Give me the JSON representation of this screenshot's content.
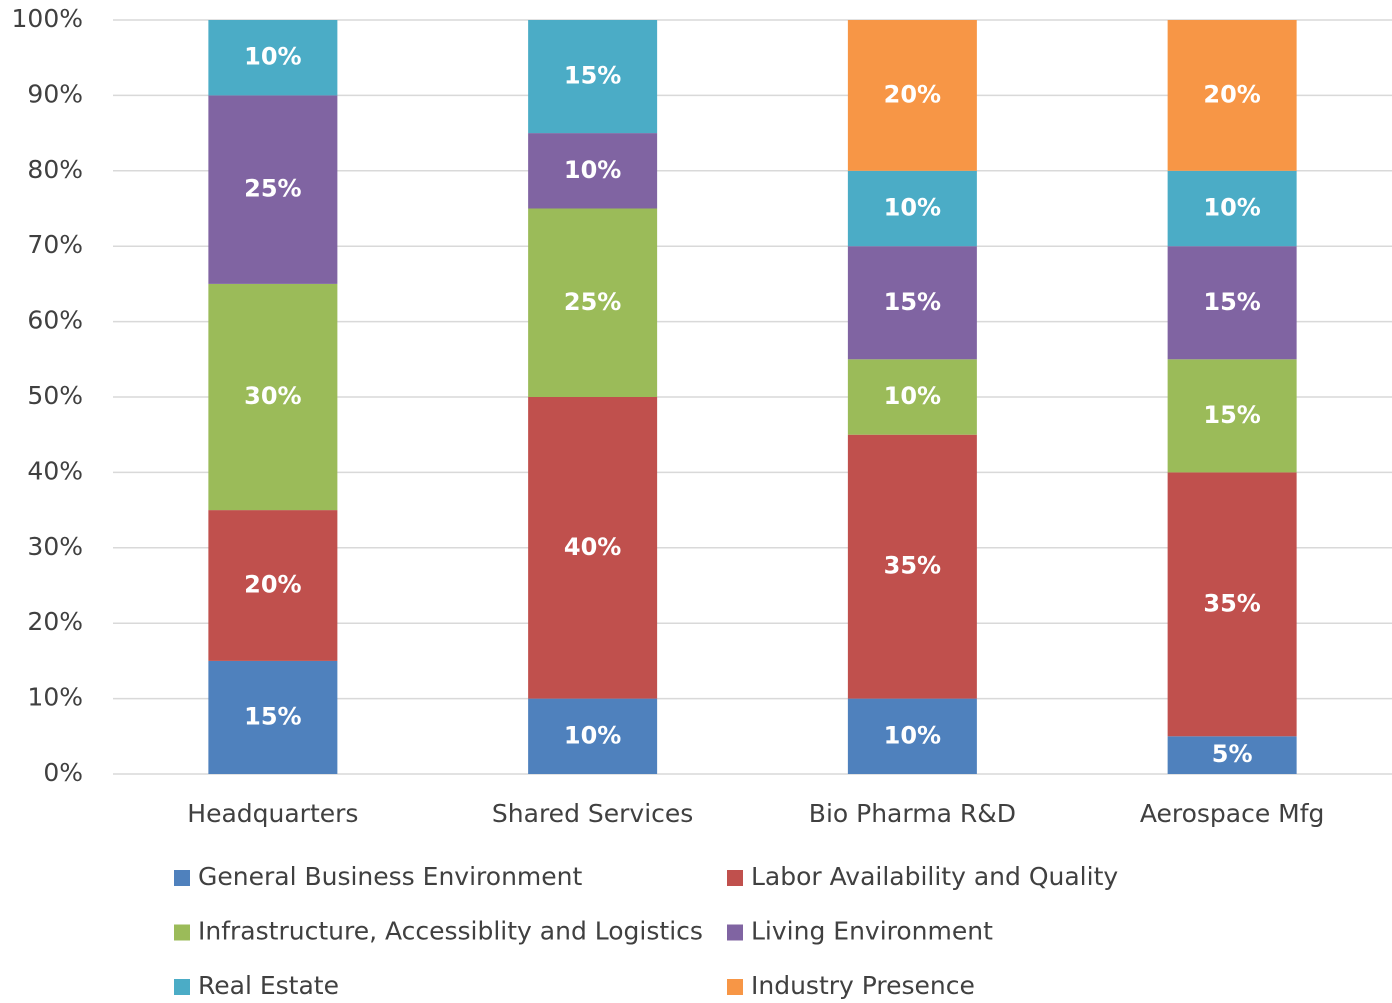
{
  "chart_data": {
    "type": "stacked-bar",
    "categories": [
      "Headquarters",
      "Shared Services",
      "Bio Pharma R&D",
      "Aerospace Mfg"
    ],
    "series": [
      {
        "name": "General Business Environment",
        "color": "#4f81bd",
        "values": [
          15,
          10,
          10,
          5
        ],
        "value_labels": [
          "15%",
          "10%",
          "10%",
          "5%"
        ]
      },
      {
        "name": "Labor Availability and Quality",
        "color": "#c0504d",
        "values": [
          20,
          40,
          35,
          35
        ],
        "value_labels": [
          "20%",
          "40%",
          "35%",
          "35%"
        ]
      },
      {
        "name": "Infrastructure, Accessiblity and Logistics",
        "color": "#9bbb59",
        "values": [
          30,
          25,
          10,
          15
        ],
        "value_labels": [
          "30%",
          "25%",
          "10%",
          "15%"
        ]
      },
      {
        "name": "Living Environment",
        "color": "#8064a2",
        "values": [
          25,
          10,
          15,
          15
        ],
        "value_labels": [
          "25%",
          "10%",
          "15%",
          "15%"
        ]
      },
      {
        "name": "Real Estate",
        "color": "#4bacc6",
        "values": [
          10,
          15,
          10,
          10
        ],
        "value_labels": [
          "10%",
          "15%",
          "10%",
          "10%"
        ]
      },
      {
        "name": "Industry Presence",
        "color": "#f79646",
        "values": [
          null,
          null,
          20,
          20
        ],
        "value_labels": [
          null,
          null,
          "20%",
          "20%"
        ]
      }
    ],
    "ylim": [
      0,
      100
    ],
    "yticks": [
      {
        "value": 0,
        "label": "0%"
      },
      {
        "value": 10,
        "label": "10%"
      },
      {
        "value": 20,
        "label": "20%"
      },
      {
        "value": 30,
        "label": "30%"
      },
      {
        "value": 40,
        "label": "40%"
      },
      {
        "value": 50,
        "label": "50%"
      },
      {
        "value": 60,
        "label": "60%"
      },
      {
        "value": 70,
        "label": "70%"
      },
      {
        "value": 80,
        "label": "80%"
      },
      {
        "value": 90,
        "label": "90%"
      },
      {
        "value": 100,
        "label": "100%"
      }
    ],
    "grid": true
  }
}
